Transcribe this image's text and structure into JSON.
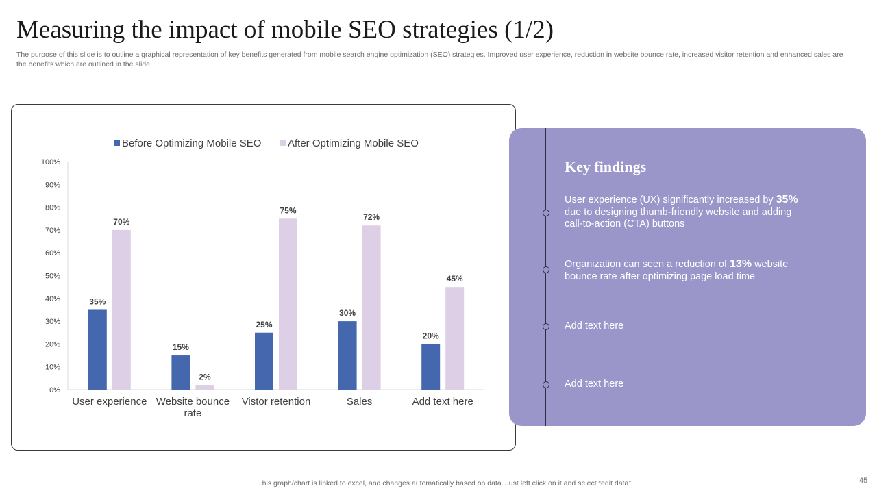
{
  "slide": {
    "title": "Measuring the impact of mobile SEO strategies (1/2)",
    "subtitle": "The purpose of this slide is to outline a graphical representation of key benefits generated from mobile search engine optimization (SEO) strategies. Improved user experience, reduction in website bounce rate, increased visitor retention and enhanced sales are the benefits which are outlined in the slide.",
    "footnote": "This graph/chart is linked to excel,  and changes automatically based on data. Just left click on it and select “edit data”.",
    "page_number": "45"
  },
  "chart_data": {
    "type": "bar",
    "title": "",
    "xlabel": "",
    "ylabel": "",
    "ylim": [
      0,
      100
    ],
    "grid": false,
    "legend": "top",
    "categories": [
      [
        "User experience"
      ],
      [
        "Website bounce",
        "rate"
      ],
      [
        "Vistor retention"
      ],
      [
        "Sales"
      ],
      [
        "Add text here"
      ]
    ],
    "yticks": [
      "0%",
      "10%",
      "20%",
      "30%",
      "40%",
      "50%",
      "60%",
      "70%",
      "80%",
      "90%",
      "100%"
    ],
    "series": [
      {
        "name": "Before Optimizing Mobile SEO",
        "color": "#4467ad",
        "values": [
          35,
          15,
          25,
          30,
          20
        ],
        "labels": [
          "35%",
          "15%",
          "25%",
          "30%",
          "20%"
        ]
      },
      {
        "name": "After Optimizing Mobile SEO",
        "color": "#ddd0e6",
        "values": [
          70,
          2,
          75,
          72,
          45
        ],
        "labels": [
          "70%",
          "2%",
          "75%",
          "72%",
          "45%"
        ]
      }
    ]
  },
  "key_findings": {
    "heading": "Key findings",
    "items": [
      {
        "before": "User experience (UX) significantly increased by ",
        "highlight": "35%",
        "after": " due to designing thumb-friendly website and adding call-to-action (CTA) buttons"
      },
      {
        "before": "Organization can seen a reduction of ",
        "highlight": "13%",
        "after": " website bounce rate after optimizing page load time"
      },
      {
        "before": "Add text here",
        "highlight": "",
        "after": ""
      },
      {
        "before": "Add text here",
        "highlight": "",
        "after": ""
      }
    ]
  },
  "colors": {
    "panel": "#9b96c9",
    "before_bar": "#4467ad",
    "after_bar": "#ddd0e6"
  }
}
